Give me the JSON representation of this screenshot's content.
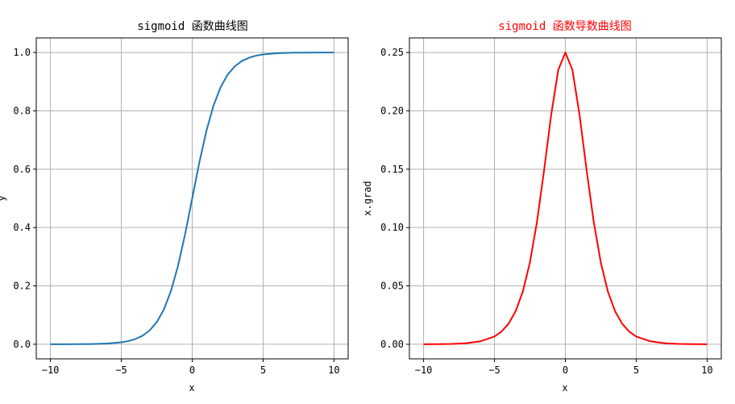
{
  "chart_data": [
    {
      "type": "line",
      "title": "sigmoid 函数曲线图",
      "title_color": "#000000",
      "xlabel": "x",
      "ylabel": "y",
      "xlim": [
        -11,
        11
      ],
      "ylim": [
        -0.05,
        1.05
      ],
      "xticks": [
        -10,
        -5,
        0,
        5,
        10
      ],
      "xtick_labels": [
        "−10",
        "−5",
        "0",
        "5",
        "10"
      ],
      "yticks": [
        0.0,
        0.2,
        0.4,
        0.6,
        0.8,
        1.0
      ],
      "ytick_labels": [
        "0.0",
        "0.2",
        "0.4",
        "0.6",
        "0.8",
        "1.0"
      ],
      "grid": true,
      "series": [
        {
          "color": "#1f77b4",
          "x": [
            -10,
            -9,
            -8,
            -7,
            -6,
            -5,
            -4.5,
            -4,
            -3.5,
            -3,
            -2.5,
            -2,
            -1.5,
            -1,
            -0.5,
            0,
            0.5,
            1,
            1.5,
            2,
            2.5,
            3,
            3.5,
            4,
            4.5,
            5,
            6,
            7,
            8,
            9,
            10
          ],
          "y": [
            0.0,
            0.0001,
            0.0003,
            0.0009,
            0.0025,
            0.0067,
            0.011,
            0.018,
            0.0293,
            0.0474,
            0.0759,
            0.1192,
            0.1824,
            0.2689,
            0.3775,
            0.5,
            0.6225,
            0.7311,
            0.8176,
            0.8808,
            0.9241,
            0.9526,
            0.9707,
            0.982,
            0.989,
            0.9933,
            0.9975,
            0.9991,
            0.9997,
            0.9999,
            1.0
          ]
        }
      ]
    },
    {
      "type": "line",
      "title": "sigmoid 函数导数曲线图",
      "title_color": "#ff0000",
      "xlabel": "x",
      "ylabel": "x.grad",
      "xlim": [
        -11,
        11
      ],
      "ylim": [
        -0.0125,
        0.2625
      ],
      "xticks": [
        -10,
        -5,
        0,
        5,
        10
      ],
      "xtick_labels": [
        "−10",
        "−5",
        "0",
        "5",
        "10"
      ],
      "yticks": [
        0.0,
        0.05,
        0.1,
        0.15,
        0.2,
        0.25
      ],
      "ytick_labels": [
        "0.00",
        "0.05",
        "0.10",
        "0.15",
        "0.20",
        "0.25"
      ],
      "grid": true,
      "series": [
        {
          "color": "#ff0000",
          "x": [
            -10,
            -9,
            -8,
            -7,
            -6,
            -5,
            -4.5,
            -4,
            -3.5,
            -3,
            -2.5,
            -2,
            -1.5,
            -1,
            -0.5,
            0,
            0.5,
            1,
            1.5,
            2,
            2.5,
            3,
            3.5,
            4,
            4.5,
            5,
            6,
            7,
            8,
            9,
            10
          ],
          "y": [
            0.0,
            0.0001,
            0.0003,
            0.0009,
            0.0025,
            0.0066,
            0.0109,
            0.0177,
            0.0285,
            0.0452,
            0.0701,
            0.105,
            0.1491,
            0.1966,
            0.235,
            0.25,
            0.235,
            0.1966,
            0.1491,
            0.105,
            0.0701,
            0.0452,
            0.0285,
            0.0177,
            0.0109,
            0.0066,
            0.0025,
            0.0009,
            0.0003,
            0.0001,
            0.0
          ]
        }
      ]
    }
  ]
}
